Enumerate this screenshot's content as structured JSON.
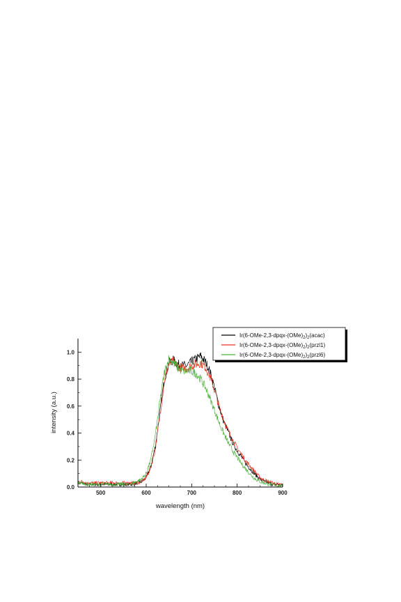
{
  "chart_data": {
    "type": "line",
    "title": "",
    "xlabel": "wavelength (nm)",
    "ylabel": "intensity (a.u.)",
    "xlim": [
      450,
      900
    ],
    "ylim": [
      0,
      1.1
    ],
    "xticks": [
      500,
      600,
      700,
      800,
      900
    ],
    "xtick_labels": [
      "500",
      "600",
      "700",
      "800",
      "900"
    ],
    "yticks": [
      0.0,
      0.2,
      0.4,
      0.6,
      0.8,
      1.0
    ],
    "ytick_labels": [
      "0.0",
      "0.2",
      "0.4",
      "0.6",
      "0.8",
      "1.0"
    ],
    "grid": false,
    "legend_position": "top-right",
    "series": [
      {
        "name": "Ir(6-OMe-2,3-dpqx-(OMe)2)2(acac)",
        "name_parts": {
          "base": "Ir(6-OMe-2,3-dpqx-(OMe)",
          "sub1": "2",
          "mid": ")",
          "sub2": "2",
          "end": "(acac)"
        },
        "color": "#000000",
        "x": [
          450,
          460,
          470,
          480,
          490,
          500,
          510,
          520,
          530,
          540,
          550,
          560,
          570,
          580,
          590,
          600,
          610,
          620,
          630,
          640,
          650,
          660,
          670,
          680,
          690,
          700,
          710,
          720,
          730,
          740,
          750,
          760,
          770,
          780,
          790,
          800,
          810,
          820,
          830,
          840,
          850,
          860,
          870,
          880,
          890,
          900
        ],
        "y": [
          0.03,
          0.03,
          0.02,
          0.02,
          0.02,
          0.02,
          0.02,
          0.02,
          0.02,
          0.02,
          0.02,
          0.02,
          0.02,
          0.03,
          0.04,
          0.07,
          0.15,
          0.3,
          0.55,
          0.8,
          0.92,
          0.94,
          0.91,
          0.9,
          0.9,
          0.93,
          0.95,
          0.97,
          0.93,
          0.86,
          0.74,
          0.6,
          0.49,
          0.41,
          0.33,
          0.27,
          0.22,
          0.17,
          0.13,
          0.09,
          0.06,
          0.04,
          0.03,
          0.02,
          0.02,
          0.01
        ]
      },
      {
        "name": "Ir(6-OMe-2,3-dpqx-(OMe)2)2(przl1)",
        "name_parts": {
          "base": "Ir(6-OMe-2,3-dpqx-(OMe)",
          "sub1": "2",
          "mid": ")",
          "sub2": "2",
          "end": "(przl1)"
        },
        "color": "#e8321e",
        "x": [
          450,
          460,
          470,
          480,
          490,
          500,
          510,
          520,
          530,
          540,
          550,
          560,
          570,
          580,
          590,
          600,
          610,
          620,
          630,
          640,
          650,
          660,
          670,
          680,
          690,
          700,
          710,
          720,
          730,
          740,
          750,
          760,
          770,
          780,
          790,
          800,
          810,
          820,
          830,
          840,
          850,
          860,
          870,
          880,
          890,
          900
        ],
        "y": [
          0.04,
          0.04,
          0.03,
          0.03,
          0.03,
          0.03,
          0.03,
          0.03,
          0.03,
          0.03,
          0.03,
          0.03,
          0.03,
          0.03,
          0.04,
          0.07,
          0.14,
          0.28,
          0.53,
          0.79,
          0.91,
          0.93,
          0.9,
          0.88,
          0.88,
          0.9,
          0.91,
          0.92,
          0.89,
          0.82,
          0.72,
          0.6,
          0.5,
          0.42,
          0.35,
          0.29,
          0.24,
          0.19,
          0.15,
          0.11,
          0.07,
          0.05,
          0.04,
          0.03,
          0.02,
          0.02
        ]
      },
      {
        "name": "Ir(6-OMe-2,3-dpqx-(OMe)2)2(przl6)",
        "name_parts": {
          "base": "Ir(6-OMe-2,3-dpqx-(OMe)",
          "sub1": "2",
          "mid": ")",
          "sub2": "2",
          "end": "(przl6)"
        },
        "color": "#4caf3a",
        "x": [
          450,
          460,
          470,
          480,
          490,
          500,
          510,
          520,
          530,
          540,
          550,
          560,
          570,
          580,
          590,
          600,
          610,
          620,
          630,
          640,
          650,
          660,
          670,
          680,
          690,
          700,
          710,
          720,
          730,
          740,
          750,
          760,
          770,
          780,
          790,
          800,
          810,
          820,
          830,
          840,
          850,
          860,
          870,
          880,
          890,
          900
        ],
        "y": [
          0.03,
          0.03,
          0.02,
          0.02,
          0.02,
          0.02,
          0.02,
          0.02,
          0.02,
          0.02,
          0.02,
          0.02,
          0.03,
          0.04,
          0.06,
          0.1,
          0.2,
          0.38,
          0.63,
          0.85,
          0.95,
          0.92,
          0.88,
          0.86,
          0.86,
          0.86,
          0.84,
          0.8,
          0.74,
          0.66,
          0.57,
          0.48,
          0.4,
          0.33,
          0.27,
          0.22,
          0.17,
          0.13,
          0.09,
          0.06,
          0.04,
          0.03,
          0.02,
          0.02,
          0.01,
          0.01
        ]
      }
    ]
  }
}
